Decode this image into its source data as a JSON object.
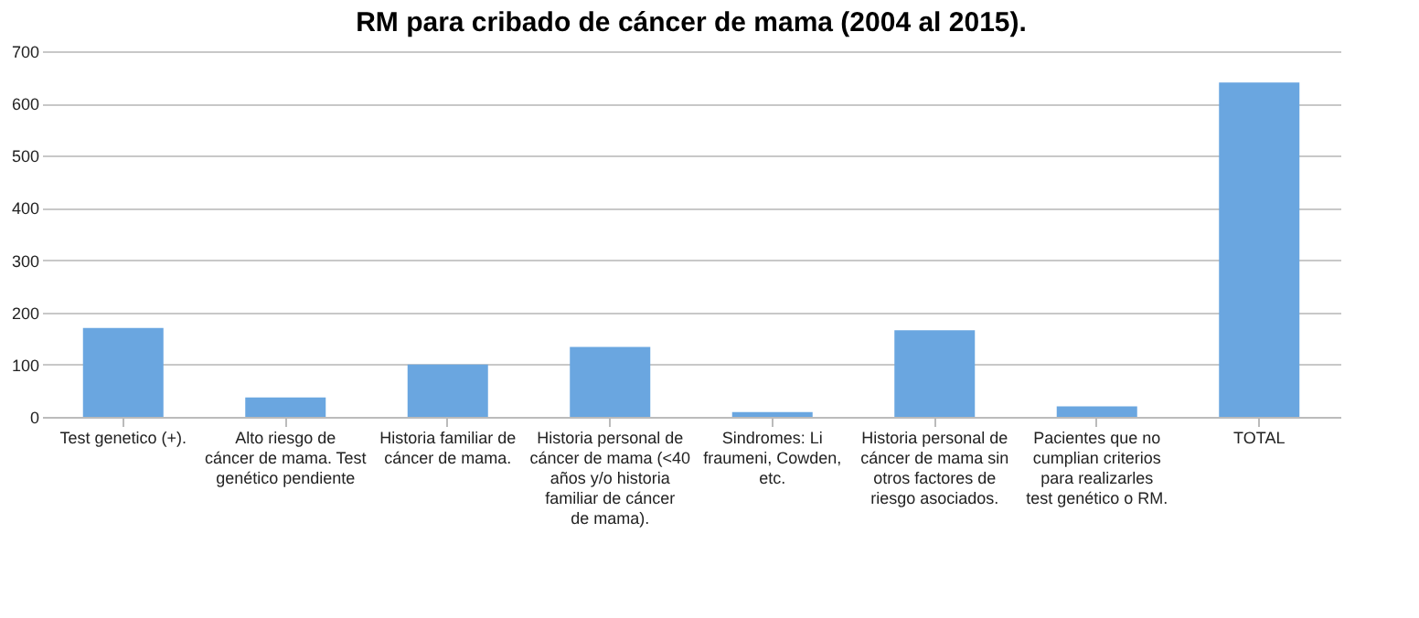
{
  "chart_data": {
    "type": "bar",
    "title": "RM para cribado de cáncer de mama (2004 al 2015).",
    "categories": [
      "Test genetico (+).",
      "Alto riesgo de cáncer de mama. Test genético pendiente",
      "Historia familiar de cáncer de mama.",
      "Historia personal de cáncer de mama (<40 años y/o historia familiar de cáncer de mama).",
      "Sindromes: Li fraumeni, Cowden, etc.",
      "Historia personal de cáncer de mama sin otros factores de riesgo asociados.",
      "Pacientes que no cumplian criterios para realizarles test genético o RM.",
      "TOTAL"
    ],
    "values": [
      170,
      37,
      100,
      134,
      9,
      166,
      20,
      640
    ],
    "color": "#6aa6e0",
    "ylim": [
      0,
      700
    ],
    "yticks": [
      0,
      100,
      200,
      300,
      400,
      500,
      600,
      700
    ],
    "grid": "y"
  }
}
